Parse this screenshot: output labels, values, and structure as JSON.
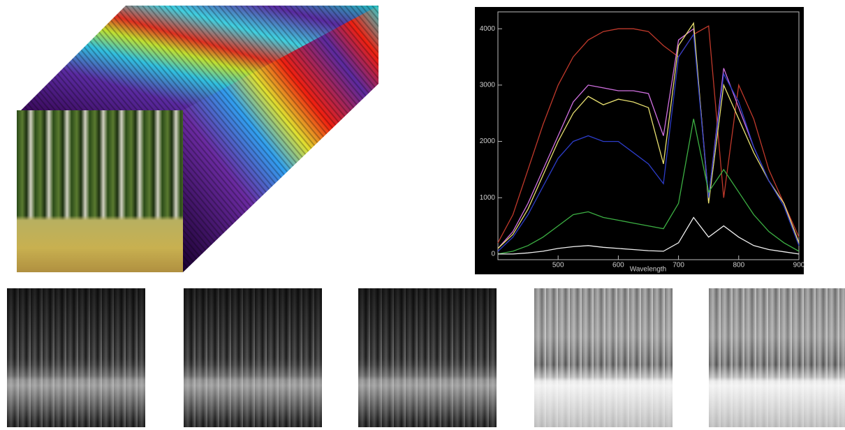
{
  "chart_data": {
    "type": "line",
    "x_label": "Wavelength",
    "x": [
      400,
      425,
      450,
      475,
      500,
      525,
      550,
      575,
      600,
      625,
      650,
      675,
      700,
      725,
      750,
      775,
      800,
      825,
      850,
      875,
      900
    ],
    "series": [
      {
        "color": "#c0392b",
        "values": [
          200,
          700,
          1500,
          2300,
          3000,
          3500,
          3800,
          3950,
          4000,
          4000,
          3950,
          3700,
          3500,
          3900,
          4050,
          1000,
          3000,
          2400,
          1500,
          900,
          300
        ]
      },
      {
        "color": "#d070e0",
        "values": [
          100,
          400,
          900,
          1500,
          2100,
          2700,
          3000,
          2950,
          2900,
          2900,
          2850,
          2100,
          3800,
          4000,
          1000,
          3300,
          2600,
          1900,
          1300,
          900,
          200
        ]
      },
      {
        "color": "#e8e070",
        "values": [
          100,
          350,
          800,
          1400,
          2000,
          2500,
          2800,
          2650,
          2750,
          2700,
          2600,
          1600,
          3700,
          4100,
          900,
          3000,
          2400,
          1800,
          1300,
          900,
          200
        ]
      },
      {
        "color": "#2c3cc8",
        "values": [
          50,
          300,
          700,
          1200,
          1700,
          2000,
          2100,
          2000,
          2000,
          1800,
          1600,
          1250,
          3500,
          3900,
          1000,
          3200,
          2700,
          1900,
          1300,
          850,
          150
        ]
      },
      {
        "color": "#3cb043",
        "values": [
          0,
          50,
          150,
          300,
          500,
          700,
          750,
          650,
          600,
          550,
          500,
          450,
          900,
          2400,
          1100,
          1500,
          1100,
          700,
          400,
          200,
          50
        ]
      },
      {
        "color": "#f0f0f0",
        "values": [
          0,
          0,
          20,
          50,
          100,
          130,
          150,
          120,
          100,
          80,
          60,
          50,
          200,
          650,
          300,
          500,
          300,
          150,
          80,
          40,
          0
        ]
      }
    ],
    "xlim": [
      400,
      900
    ],
    "xticks": [
      500,
      600,
      700,
      800,
      900
    ],
    "ylim": [
      -100,
      4300
    ],
    "yticks": [
      0,
      1000,
      2000,
      3000,
      4000
    ]
  }
}
